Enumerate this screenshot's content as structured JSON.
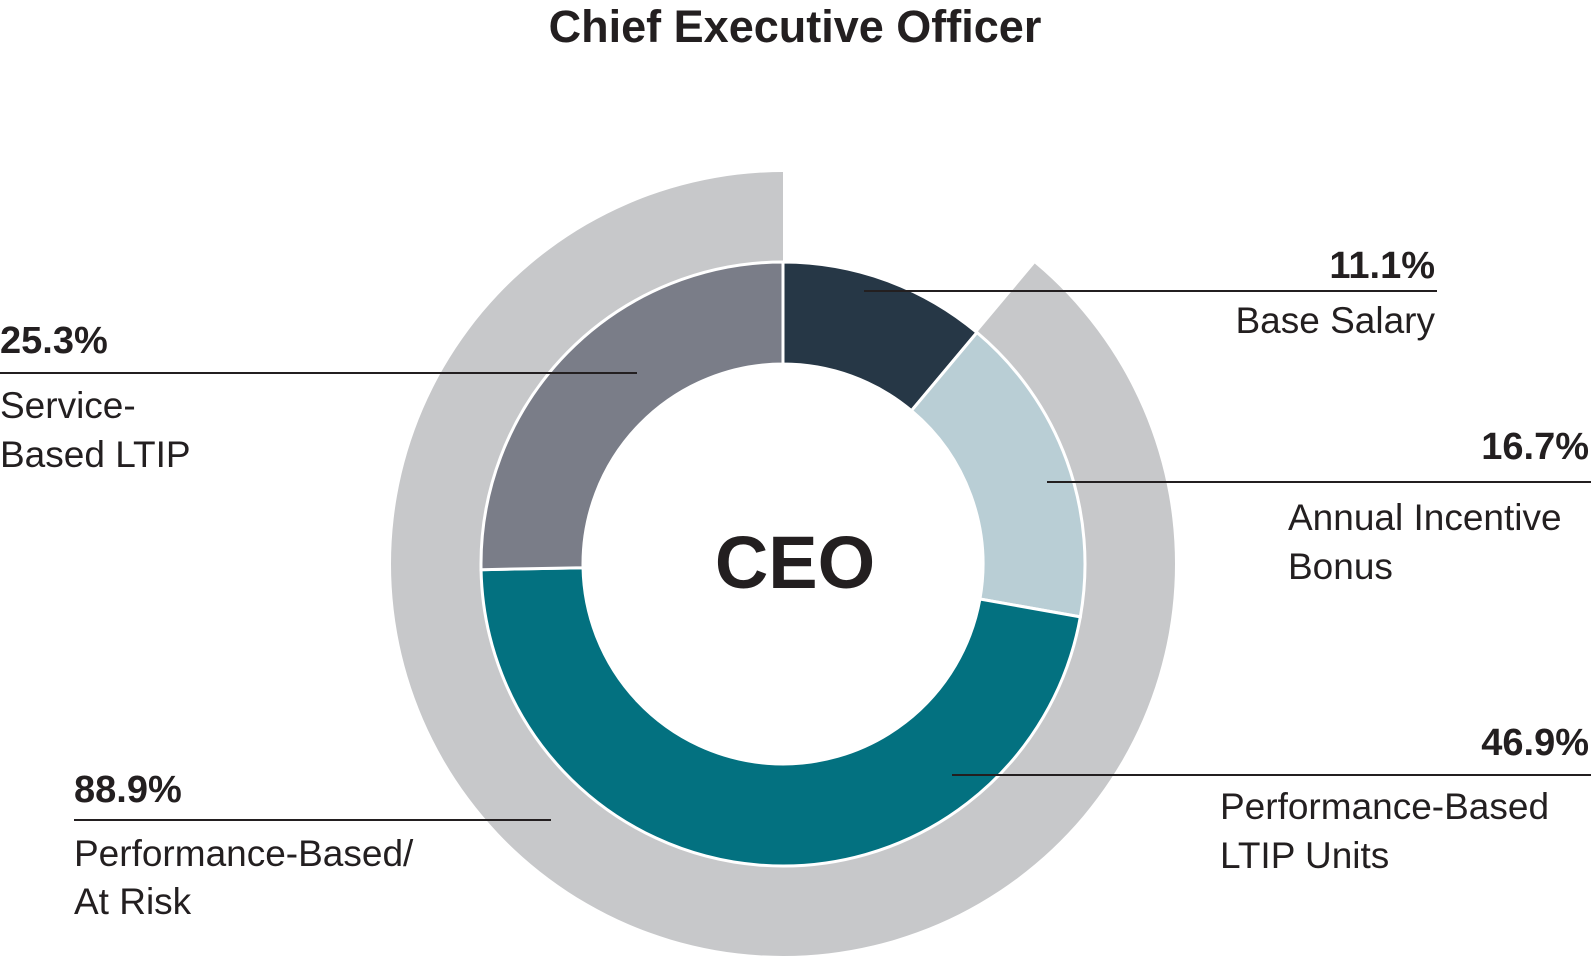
{
  "chart_data": {
    "type": "pie",
    "variant": "nested-donut",
    "title": "Chief Executive Officer",
    "center_label": "CEO",
    "inner_ring": {
      "series_name": "Pay components",
      "slices": [
        {
          "label": "Base Salary",
          "label_lines": [
            "Base Salary"
          ],
          "value": 11.1,
          "display": "11.1%",
          "color": "#263746"
        },
        {
          "label": "Annual Incentive Bonus",
          "label_lines": [
            "Annual Incentive",
            "Bonus"
          ],
          "value": 16.7,
          "display": "16.7%",
          "color": "#b9ced5"
        },
        {
          "label": "Performance-Based LTIP Units",
          "label_lines": [
            "Performance-Based",
            "LTIP Units"
          ],
          "value": 46.9,
          "display": "46.9%",
          "color": "#037180"
        },
        {
          "label": "Service-Based LTIP",
          "label_lines": [
            "Service-",
            "Based LTIP"
          ],
          "value": 25.3,
          "display": "25.3%",
          "color": "#7a7d88"
        }
      ]
    },
    "outer_ring": {
      "series_name": "At risk",
      "slices": [
        {
          "label": "Performance-Based/ At Risk",
          "label_lines": [
            "Performance-Based/",
            "At Risk"
          ],
          "value": 88.9,
          "display": "88.9%",
          "color": "#c7c8ca"
        }
      ]
    }
  }
}
